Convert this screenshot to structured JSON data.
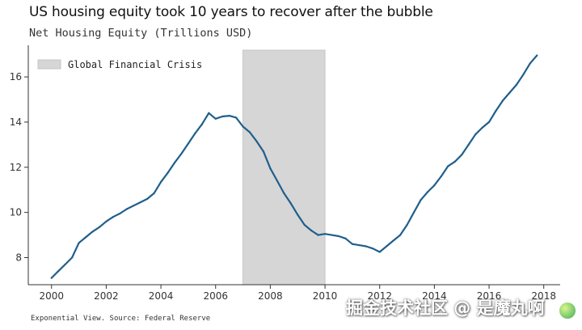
{
  "title": "US housing equity took 10 years to recover after the bubble",
  "subtitle": "Net Housing Equity (Trillions USD)",
  "source": "Exponential View. Source: Federal Reserve",
  "watermark": "掘金技术社区 @ 是魔丸啊",
  "colors": {
    "line": "#1f5f8b",
    "shade": "#d6d6d6",
    "axis": "#333333"
  },
  "chart_data": {
    "type": "line",
    "title": "US housing equity took 10 years to recover after the bubble",
    "ylabel": "Net Housing Equity (Trillions USD)",
    "xlim": [
      1999.15,
      2018.6
    ],
    "ylim": [
      6.8,
      17.4
    ],
    "x_ticks": [
      2000,
      2002,
      2004,
      2006,
      2008,
      2010,
      2012,
      2014,
      2016,
      2018
    ],
    "y_ticks": [
      8,
      10,
      12,
      14,
      16
    ],
    "legend": {
      "label": "Global Financial Crisis",
      "position": "top-left"
    },
    "shaded_region": {
      "label": "Global Financial Crisis",
      "x": [
        2007,
        2010
      ]
    },
    "series": [
      {
        "x": [
          2000,
          2000.25,
          2000.5,
          2000.75,
          2001,
          2001.25,
          2001.5,
          2001.75,
          2002,
          2002.25,
          2002.5,
          2002.75,
          2003,
          2003.25,
          2003.5,
          2003.75,
          2004,
          2004.25,
          2004.5,
          2004.75,
          2005,
          2005.25,
          2005.5,
          2005.75,
          2006,
          2006.25,
          2006.5,
          2006.75,
          2007,
          2007.25,
          2007.5,
          2007.75,
          2008,
          2008.25,
          2008.5,
          2008.75,
          2009,
          2009.25,
          2009.5,
          2009.75,
          2010,
          2010.25,
          2010.5,
          2010.75,
          2011,
          2011.25,
          2011.5,
          2011.75,
          2012,
          2012.25,
          2012.5,
          2012.75,
          2013,
          2013.25,
          2013.5,
          2013.75,
          2014,
          2014.25,
          2014.5,
          2014.75,
          2015,
          2015.25,
          2015.5,
          2015.75,
          2016,
          2016.25,
          2016.5,
          2016.75,
          2017,
          2017.25,
          2017.5,
          2017.75
        ],
        "values": [
          7.1,
          7.4,
          7.7,
          8.0,
          8.65,
          8.9,
          9.15,
          9.35,
          9.6,
          9.8,
          9.95,
          10.15,
          10.3,
          10.45,
          10.6,
          10.85,
          11.35,
          11.75,
          12.2,
          12.6,
          13.05,
          13.5,
          13.9,
          14.4,
          14.15,
          14.25,
          14.28,
          14.2,
          13.8,
          13.55,
          13.15,
          12.7,
          11.95,
          11.4,
          10.85,
          10.4,
          9.9,
          9.45,
          9.2,
          9.0,
          9.05,
          9.0,
          8.95,
          8.85,
          8.6,
          8.55,
          8.5,
          8.4,
          8.25,
          8.5,
          8.75,
          9.0,
          9.45,
          10.0,
          10.55,
          10.9,
          11.2,
          11.6,
          12.05,
          12.25,
          12.55,
          13.0,
          13.45,
          13.75,
          14.0,
          14.5,
          14.95,
          15.3,
          15.65,
          16.1,
          16.6,
          16.95
        ]
      }
    ]
  }
}
